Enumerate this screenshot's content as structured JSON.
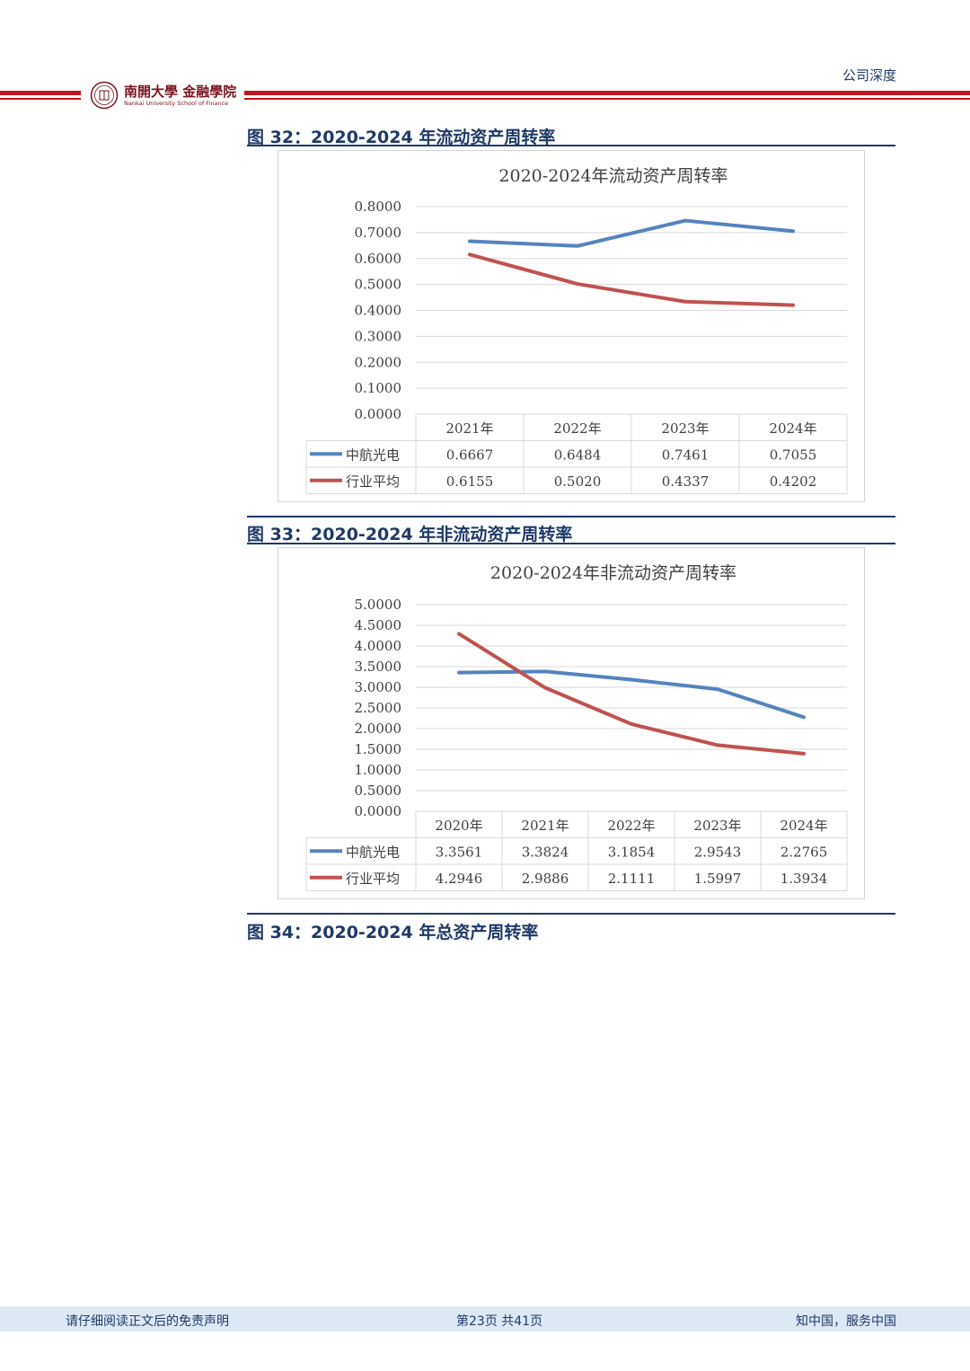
{
  "header": {
    "report_type": "公司深度",
    "logo_cn": "南開大學 金融學院",
    "logo_en": "Nankai University  School of Finance"
  },
  "figures": [
    {
      "title": "图 32：2020-2024 年流动资产周转率"
    },
    {
      "title": "图 33：2020-2024 年非流动资产周转率"
    },
    {
      "title": "图 34：2020-2024 年总资产周转率"
    }
  ],
  "footer": {
    "left": "请仔细阅读正文后的免责声明",
    "center": "第23页  共41页",
    "right": "知中国，服务中国"
  },
  "colors": {
    "series_blue": "#5584bd",
    "series_red": "#bf5250",
    "grid": "#d9d9d9",
    "navy": "#1f3a68",
    "brand_red": "#c0141e"
  },
  "chart_data": [
    {
      "type": "line",
      "title": "2020-2024年流动资产周转率",
      "categories": [
        "2021年",
        "2022年",
        "2023年",
        "2024年"
      ],
      "series": [
        {
          "name": "中航光电",
          "values": [
            0.6667,
            0.6484,
            0.7461,
            0.7055
          ],
          "labels": [
            "0.6667",
            "0.6484",
            "0.7461",
            "0.7055"
          ]
        },
        {
          "name": "行业平均",
          "values": [
            0.6155,
            0.502,
            0.4337,
            0.4202
          ],
          "labels": [
            "0.6155",
            "0.5020",
            "0.4337",
            "0.4202"
          ]
        }
      ],
      "ylim": [
        0,
        0.8
      ],
      "yticks": [
        "0.8000",
        "0.7000",
        "0.6000",
        "0.5000",
        "0.4000",
        "0.3000",
        "0.2000",
        "0.1000",
        "0.0000"
      ],
      "data_table": true,
      "xlabel": "",
      "ylabel": ""
    },
    {
      "type": "line",
      "title": "2020-2024年非流动资产周转率",
      "categories": [
        "2020年",
        "2021年",
        "2022年",
        "2023年",
        "2024年"
      ],
      "series": [
        {
          "name": "中航光电",
          "values": [
            3.3561,
            3.3824,
            3.1854,
            2.9543,
            2.2765
          ],
          "labels": [
            "3.3561",
            "3.3824",
            "3.1854",
            "2.9543",
            "2.2765"
          ]
        },
        {
          "name": "行业平均",
          "values": [
            4.2946,
            2.9886,
            2.1111,
            1.5997,
            1.3934
          ],
          "labels": [
            "4.2946",
            "2.9886",
            "2.1111",
            "1.5997",
            "1.3934"
          ]
        }
      ],
      "ylim": [
        0,
        5.0
      ],
      "yticks": [
        "5.0000",
        "4.5000",
        "4.0000",
        "3.5000",
        "3.0000",
        "2.5000",
        "2.0000",
        "1.5000",
        "1.0000",
        "0.5000",
        "0.0000"
      ],
      "data_table": true,
      "xlabel": "",
      "ylabel": ""
    }
  ]
}
